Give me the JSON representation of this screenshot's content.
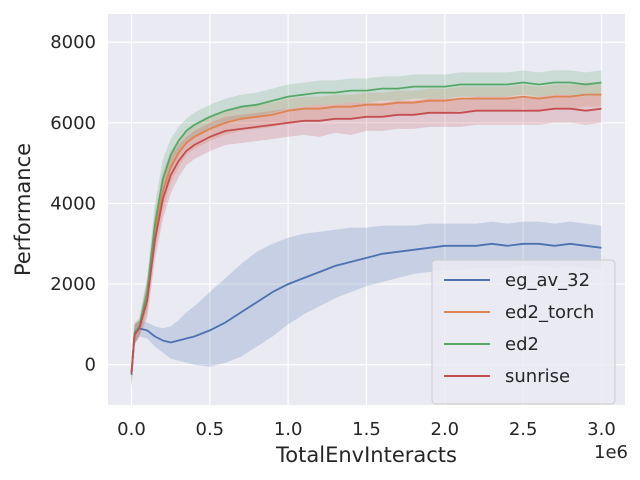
{
  "chart_data": {
    "type": "line",
    "xlabel": "TotalEnvInteracts",
    "ylabel": "Performance",
    "x_offset_label": "1e6",
    "xlim": [
      -0.15,
      3.15
    ],
    "ylim": [
      -1000,
      8700
    ],
    "xticks": [
      0.0,
      0.5,
      1.0,
      1.5,
      2.0,
      2.5,
      3.0
    ],
    "xtick_labels": [
      "0.0",
      "0.5",
      "1.0",
      "1.5",
      "2.0",
      "2.5",
      "3.0"
    ],
    "yticks": [
      0,
      2000,
      4000,
      6000,
      8000
    ],
    "ytick_labels": [
      "0",
      "2000",
      "4000",
      "6000",
      "8000"
    ],
    "grid": true,
    "legend_position": "lower-right",
    "x": [
      0.0,
      0.02,
      0.05,
      0.1,
      0.15,
      0.2,
      0.25,
      0.3,
      0.35,
      0.4,
      0.5,
      0.6,
      0.7,
      0.8,
      0.9,
      1.0,
      1.1,
      1.2,
      1.3,
      1.4,
      1.5,
      1.6,
      1.7,
      1.8,
      1.9,
      2.0,
      2.1,
      2.2,
      2.3,
      2.4,
      2.5,
      2.6,
      2.7,
      2.8,
      2.9,
      3.0
    ],
    "series": [
      {
        "name": "eg_av_32",
        "color": "#4c72b0",
        "values": [
          -250,
          750,
          900,
          850,
          700,
          600,
          550,
          600,
          650,
          700,
          850,
          1050,
          1300,
          1550,
          1800,
          2000,
          2150,
          2300,
          2450,
          2550,
          2650,
          2750,
          2800,
          2850,
          2900,
          2950,
          2950,
          2950,
          3000,
          2950,
          3000,
          3000,
          2950,
          3000,
          2950,
          2900
        ],
        "lower": [
          -600,
          500,
          700,
          650,
          450,
          300,
          150,
          100,
          50,
          0,
          -50,
          50,
          200,
          450,
          700,
          1000,
          1250,
          1450,
          1650,
          1800,
          1950,
          2050,
          2150,
          2250,
          2300,
          2350,
          2350,
          2400,
          2400,
          2400,
          2450,
          2450,
          2400,
          2450,
          2400,
          2350
        ],
        "upper": [
          100,
          1000,
          1100,
          1050,
          950,
          900,
          950,
          1100,
          1300,
          1450,
          1800,
          2150,
          2500,
          2800,
          3000,
          3150,
          3250,
          3300,
          3350,
          3400,
          3400,
          3450,
          3450,
          3450,
          3500,
          3500,
          3500,
          3500,
          3550,
          3500,
          3550,
          3550,
          3500,
          3550,
          3500,
          3450
        ]
      },
      {
        "name": "ed2_torch",
        "color": "#dd8452",
        "values": [
          -200,
          750,
          900,
          1700,
          3300,
          4300,
          4900,
          5250,
          5500,
          5650,
          5850,
          6000,
          6100,
          6150,
          6200,
          6300,
          6350,
          6350,
          6400,
          6400,
          6450,
          6450,
          6500,
          6500,
          6550,
          6550,
          6600,
          6600,
          6600,
          6600,
          6650,
          6600,
          6650,
          6650,
          6700,
          6700
        ],
        "lower": [
          -500,
          500,
          700,
          1300,
          2800,
          3800,
          4500,
          4900,
          5200,
          5350,
          5550,
          5700,
          5800,
          5850,
          5900,
          6000,
          6050,
          6050,
          6100,
          6100,
          6150,
          6150,
          6200,
          6200,
          6250,
          6250,
          6300,
          6300,
          6300,
          6300,
          6350,
          6300,
          6350,
          6350,
          6400,
          6400
        ],
        "upper": [
          100,
          1000,
          1100,
          2100,
          3800,
          4800,
          5300,
          5600,
          5800,
          5950,
          6150,
          6300,
          6400,
          6450,
          6500,
          6600,
          6650,
          6650,
          6700,
          6700,
          6750,
          6750,
          6800,
          6800,
          6850,
          6850,
          6900,
          6900,
          6900,
          6900,
          6950,
          6900,
          6950,
          6950,
          7000,
          7000
        ]
      },
      {
        "name": "ed2",
        "color": "#55a868",
        "values": [
          -200,
          800,
          950,
          1800,
          3500,
          4600,
          5200,
          5550,
          5800,
          5950,
          6150,
          6300,
          6400,
          6450,
          6550,
          6650,
          6700,
          6750,
          6750,
          6800,
          6800,
          6850,
          6850,
          6900,
          6900,
          6900,
          6950,
          6950,
          6950,
          6950,
          7000,
          6950,
          7000,
          7000,
          6950,
          7000
        ],
        "lower": [
          -500,
          550,
          750,
          1400,
          3000,
          4100,
          4800,
          5200,
          5500,
          5650,
          5850,
          6000,
          6100,
          6150,
          6250,
          6350,
          6400,
          6450,
          6450,
          6500,
          6500,
          6550,
          6550,
          6600,
          6600,
          6600,
          6650,
          6650,
          6650,
          6650,
          6700,
          6650,
          6700,
          6700,
          6650,
          6700
        ],
        "upper": [
          100,
          1050,
          1150,
          2200,
          4000,
          5100,
          5600,
          5900,
          6100,
          6250,
          6450,
          6600,
          6700,
          6750,
          6850,
          6950,
          7000,
          7050,
          7050,
          7100,
          7100,
          7150,
          7150,
          7200,
          7200,
          7200,
          7250,
          7250,
          7250,
          7250,
          7300,
          7250,
          7300,
          7300,
          7250,
          7300
        ]
      },
      {
        "name": "sunrise",
        "color": "#c44e52",
        "values": [
          -200,
          750,
          900,
          1600,
          3100,
          4100,
          4700,
          5050,
          5300,
          5450,
          5650,
          5800,
          5850,
          5900,
          5950,
          6000,
          6050,
          6050,
          6100,
          6100,
          6150,
          6150,
          6200,
          6200,
          6250,
          6250,
          6250,
          6300,
          6300,
          6300,
          6300,
          6300,
          6350,
          6350,
          6300,
          6350
        ],
        "lower": [
          -550,
          500,
          700,
          1150,
          2600,
          3600,
          4250,
          4650,
          4950,
          5100,
          5300,
          5450,
          5500,
          5550,
          5600,
          5650,
          5700,
          5650,
          5750,
          5700,
          5800,
          5800,
          5850,
          5850,
          5900,
          5900,
          5900,
          5950,
          5950,
          5950,
          5950,
          5950,
          6000,
          6000,
          5950,
          6000
        ],
        "upper": [
          150,
          1000,
          1100,
          2050,
          3600,
          4600,
          5150,
          5450,
          5650,
          5800,
          6000,
          6150,
          6200,
          6250,
          6300,
          6350,
          6400,
          6450,
          6450,
          6500,
          6500,
          6500,
          6550,
          6550,
          6600,
          6600,
          6600,
          6650,
          6650,
          6650,
          6650,
          6650,
          6700,
          6700,
          6650,
          6700
        ]
      }
    ]
  }
}
